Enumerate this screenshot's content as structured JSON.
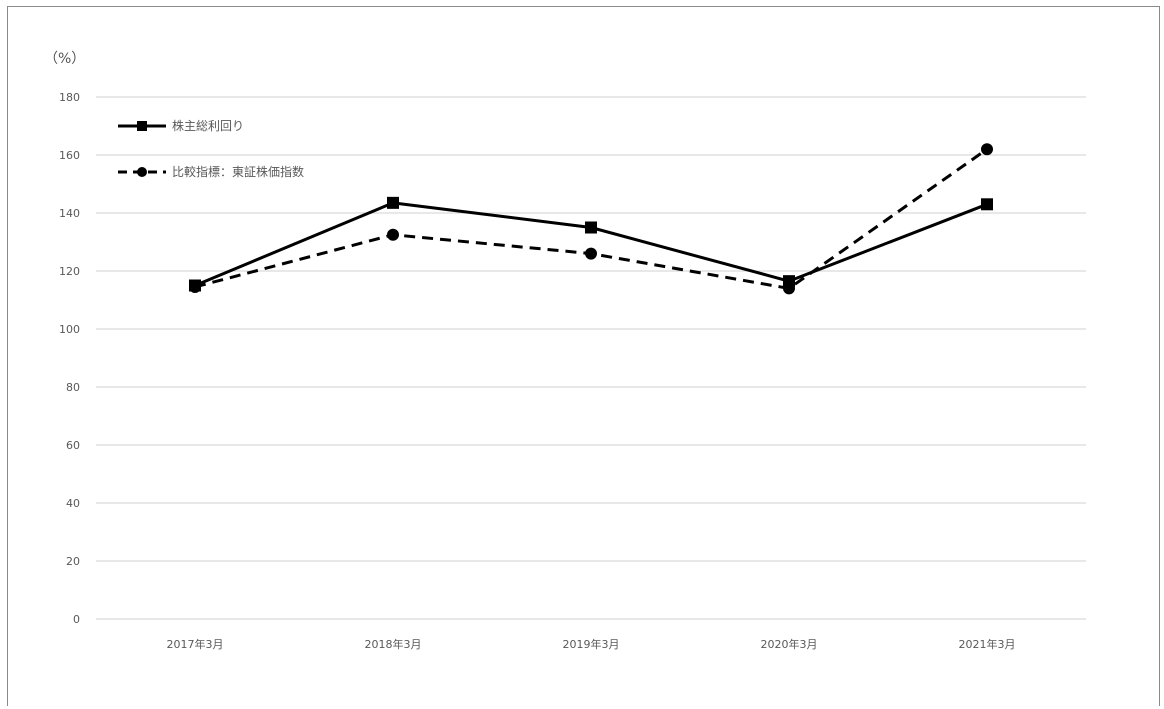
{
  "chart_data": {
    "type": "line",
    "title": "",
    "xlabel": "",
    "ylabel": "",
    "unit_label": "（%）",
    "categories": [
      "2017年3月",
      "2018年3月",
      "2019年3月",
      "2020年3月",
      "2021年3月"
    ],
    "ylim": [
      0,
      180
    ],
    "yticks": [
      0,
      20,
      40,
      60,
      80,
      100,
      120,
      140,
      160,
      180
    ],
    "grid": true,
    "legend_position": "top-left",
    "series": [
      {
        "name": "株主総利回り",
        "values": [
          115,
          143.5,
          135,
          116.5,
          143
        ],
        "line_style": "solid",
        "marker": "square",
        "color": "#000000"
      },
      {
        "name": "比較指標：東証株価指数",
        "values": [
          114.5,
          132.5,
          126,
          114,
          162
        ],
        "line_style": "dashed",
        "marker": "circle",
        "color": "#000000"
      }
    ]
  }
}
